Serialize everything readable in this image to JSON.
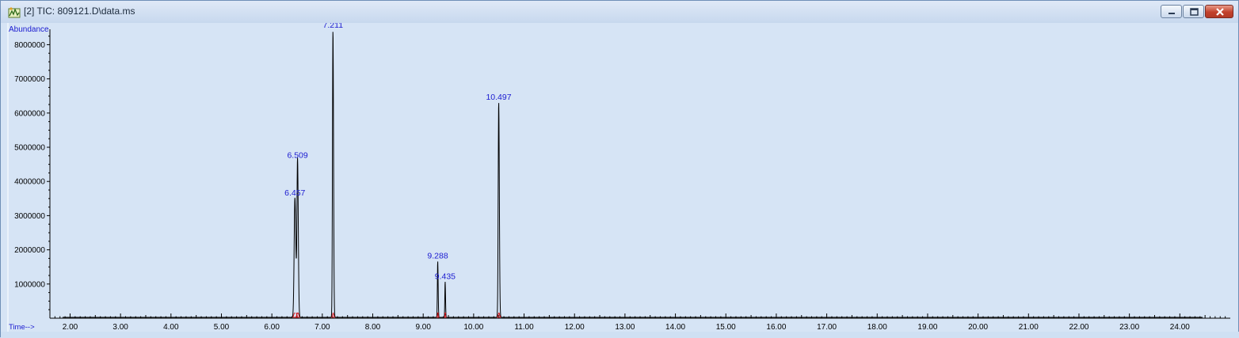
{
  "window": {
    "title": "[2] TIC: 809121.D\\data.ms",
    "icon": "chromatogram-app-icon",
    "buttons": {
      "minimize": "minimize-icon",
      "maximize": "maximize-icon",
      "close": "close-icon"
    }
  },
  "colors": {
    "plot_background": "#d6e4f5",
    "trace": "#000000",
    "baseline_marker": "#d4161b",
    "label": "#1b1bd0"
  },
  "chart_data": {
    "type": "line",
    "ylabel": "Abundance",
    "xlabel": "Time-->",
    "xlim": [
      1.6,
      25.0
    ],
    "ylim": [
      0,
      8450000
    ],
    "x_ticks": [
      "2.00",
      "3.00",
      "4.00",
      "5.00",
      "6.00",
      "7.00",
      "8.00",
      "9.00",
      "10.00",
      "11.00",
      "12.00",
      "13.00",
      "14.00",
      "15.00",
      "16.00",
      "17.00",
      "18.00",
      "19.00",
      "20.00",
      "21.00",
      "22.00",
      "23.00",
      "24.00"
    ],
    "y_ticks": [
      "1000000",
      "2000000",
      "3000000",
      "4000000",
      "5000000",
      "6000000",
      "7000000",
      "8000000"
    ],
    "peaks": [
      {
        "rt": 6.457,
        "abundance": 3500000,
        "width": 0.045,
        "label": "6.457"
      },
      {
        "rt": 6.509,
        "abundance": 4600000,
        "width": 0.035,
        "label": "6.509"
      },
      {
        "rt": 7.211,
        "abundance": 8400000,
        "width": 0.028,
        "label": "7.211"
      },
      {
        "rt": 9.288,
        "abundance": 1650000,
        "width": 0.02,
        "label": "9.288"
      },
      {
        "rt": 9.435,
        "abundance": 1050000,
        "width": 0.018,
        "label": "9.435"
      },
      {
        "rt": 10.497,
        "abundance": 6300000,
        "width": 0.03,
        "label": "10.497"
      }
    ],
    "baseline": 25000,
    "grid": false
  }
}
